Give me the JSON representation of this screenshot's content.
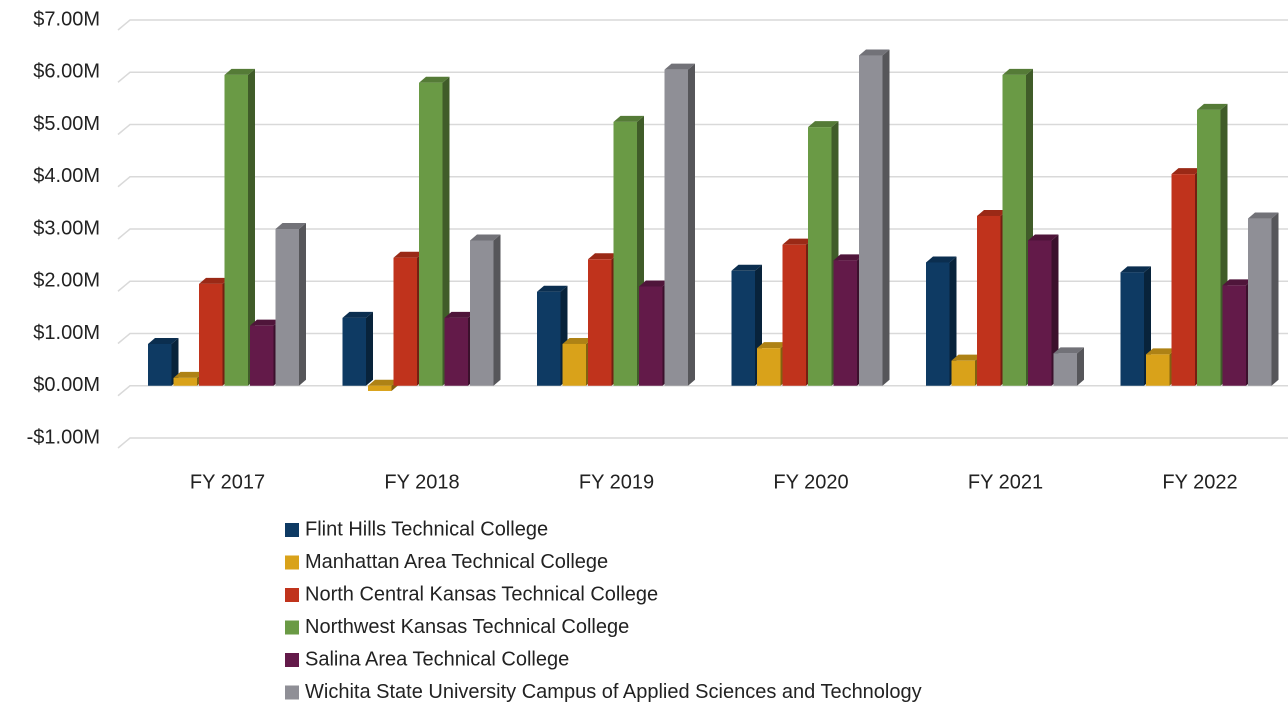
{
  "chart_data": {
    "type": "bar3d",
    "categories": [
      "FY 2017",
      "FY 2018",
      "FY 2019",
      "FY 2020",
      "FY 2021",
      "FY 2022"
    ],
    "series": [
      {
        "name": "Flint Hills Technical College",
        "color": "#0e3a63",
        "values": [
          0.8,
          1.3,
          1.8,
          2.2,
          2.36,
          2.17
        ]
      },
      {
        "name": "Manhattan Area Technical College",
        "color": "#d9a21a",
        "values": [
          0.15,
          -0.1,
          0.8,
          0.72,
          0.48,
          0.6
        ]
      },
      {
        "name": "North Central Kansas Technical College",
        "color": "#c0331c",
        "values": [
          1.95,
          2.45,
          2.42,
          2.7,
          3.25,
          4.05
        ]
      },
      {
        "name": "Northwest Kansas Technical College",
        "color": "#6a9a45",
        "values": [
          5.95,
          5.8,
          5.05,
          4.95,
          5.95,
          5.28
        ]
      },
      {
        "name": "Salina Area Technical College",
        "color": "#631a49",
        "values": [
          1.15,
          1.3,
          1.9,
          2.4,
          2.78,
          1.92
        ]
      },
      {
        "name": "Wichita State University Campus of Applied Sciences and Technology",
        "color": "#8f8f96",
        "values": [
          3.0,
          2.78,
          6.05,
          6.32,
          0.62,
          3.2
        ]
      }
    ],
    "ylim": [
      -1,
      7
    ],
    "yticks": [
      {
        "value": -1,
        "label": "-$1.00M"
      },
      {
        "value": 0,
        "label": "$0.00M"
      },
      {
        "value": 1,
        "label": "$1.00M"
      },
      {
        "value": 2,
        "label": "$2.00M"
      },
      {
        "value": 3,
        "label": "$3.00M"
      },
      {
        "value": 4,
        "label": "$4.00M"
      },
      {
        "value": 5,
        "label": "$5.00M"
      },
      {
        "value": 6,
        "label": "$6.00M"
      },
      {
        "value": 7,
        "label": "$7.00M"
      }
    ],
    "grid": true,
    "legend": "bottom"
  }
}
